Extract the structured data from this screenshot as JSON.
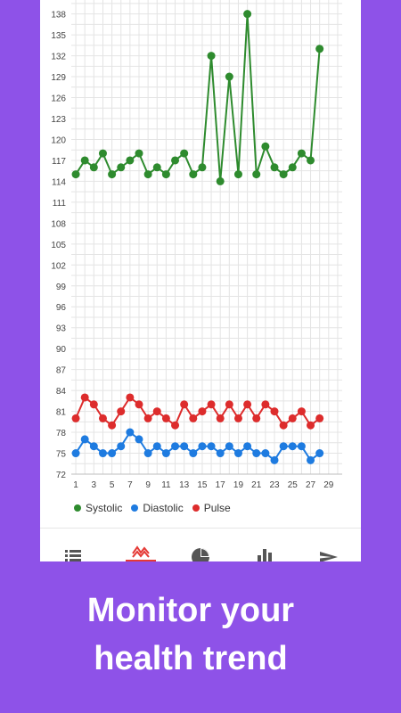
{
  "colors": {
    "background": "#8e52e8",
    "systolic": "#2e8b2e",
    "diastolic": "#1e7be0",
    "pulse": "#dd2c2c",
    "grid": "#e4e4e4",
    "active_tab": "#e53935",
    "inactive_tab": "#555555"
  },
  "chart_data": {
    "type": "line",
    "x": [
      1,
      2,
      3,
      4,
      5,
      6,
      7,
      8,
      9,
      10,
      11,
      12,
      13,
      14,
      15,
      16,
      17,
      18,
      19,
      20,
      21,
      22,
      23,
      24,
      25,
      26,
      27,
      28
    ],
    "x_tick_labels": [
      "1",
      "3",
      "5",
      "7",
      "9",
      "11",
      "13",
      "15",
      "17",
      "19",
      "21",
      "23",
      "25",
      "27",
      "29"
    ],
    "x_ticks": [
      1,
      3,
      5,
      7,
      9,
      11,
      13,
      15,
      17,
      19,
      21,
      23,
      25,
      27,
      29
    ],
    "y_tick_labels": [
      "72",
      "75",
      "78",
      "81",
      "84",
      "87",
      "90",
      "93",
      "96",
      "99",
      "102",
      "105",
      "108",
      "111",
      "114",
      "117",
      "120",
      "123",
      "126",
      "129",
      "132",
      "135",
      "138"
    ],
    "y_ticks": [
      72,
      75,
      78,
      81,
      84,
      87,
      90,
      93,
      96,
      99,
      102,
      105,
      108,
      111,
      114,
      117,
      120,
      123,
      126,
      129,
      132,
      135,
      138
    ],
    "xlim": [
      0.5,
      30.5
    ],
    "ylim": [
      72,
      140
    ],
    "grid": true,
    "legend_position": "bottom-left",
    "series": [
      {
        "name": "Systolic",
        "color_key": "systolic",
        "values": [
          115,
          117,
          116,
          118,
          115,
          116,
          117,
          118,
          115,
          116,
          115,
          117,
          118,
          115,
          116,
          132,
          114,
          129,
          115,
          138,
          115,
          119,
          116,
          115,
          116,
          118,
          117,
          133
        ]
      },
      {
        "name": "Diastolic",
        "color_key": "diastolic",
        "values": [
          75,
          77,
          76,
          75,
          75,
          76,
          78,
          77,
          75,
          76,
          75,
          76,
          76,
          75,
          76,
          76,
          75,
          76,
          75,
          76,
          75,
          75,
          74,
          76,
          76,
          76,
          74,
          75
        ]
      },
      {
        "name": "Pulse",
        "color_key": "pulse",
        "values": [
          80,
          83,
          82,
          80,
          79,
          81,
          83,
          82,
          80,
          81,
          80,
          79,
          82,
          80,
          81,
          82,
          80,
          82,
          80,
          82,
          80,
          82,
          81,
          79,
          80,
          81,
          79,
          80
        ]
      }
    ]
  },
  "legend": {
    "items": [
      {
        "label": "Systolic",
        "color_key": "systolic"
      },
      {
        "label": "Diastolic",
        "color_key": "diastolic"
      },
      {
        "label": "Pulse",
        "color_key": "pulse"
      }
    ]
  },
  "bottom_nav": {
    "items": [
      {
        "icon": "list-icon",
        "active": false
      },
      {
        "icon": "trend-icon",
        "active": true
      },
      {
        "icon": "pie-chart-icon",
        "active": false
      },
      {
        "icon": "bar-chart-icon",
        "active": false
      },
      {
        "icon": "send-icon",
        "active": false
      }
    ]
  },
  "promo": {
    "line1": "Monitor your",
    "line2": "health trend"
  }
}
